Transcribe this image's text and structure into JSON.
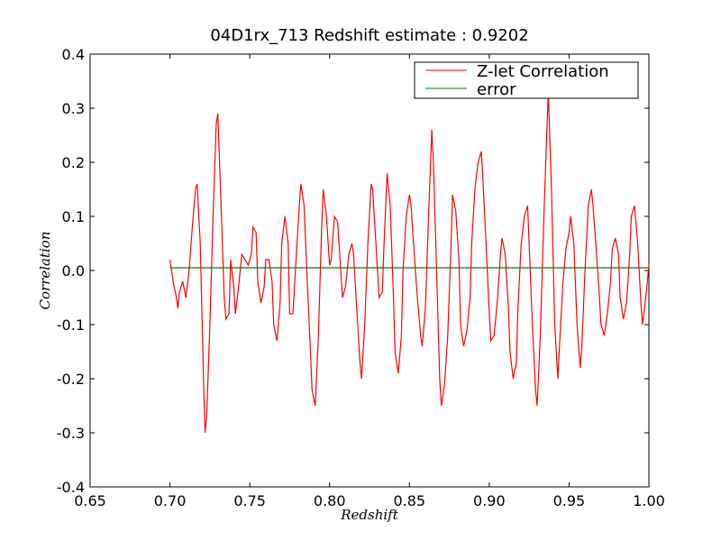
{
  "chart_data": {
    "type": "line",
    "title": "04D1rx_713 Redshift estimate : 0.9202",
    "xlabel": "Redshift",
    "ylabel": "Correlation",
    "xlim": [
      0.65,
      1.0
    ],
    "ylim": [
      -0.4,
      0.4
    ],
    "xticks": [
      "0.65",
      "0.70",
      "0.75",
      "0.80",
      "0.85",
      "0.90",
      "0.95",
      "1.00"
    ],
    "yticks": [
      "-0.4",
      "-0.3",
      "-0.2",
      "-0.1",
      "0.0",
      "0.1",
      "0.2",
      "0.3",
      "0.4"
    ],
    "legend_position": "top-right",
    "series": [
      {
        "name": "Z-let Correlation",
        "color": "#ff0000",
        "points": [
          [
            0.7,
            0.02
          ],
          [
            0.702,
            -0.02
          ],
          [
            0.704,
            -0.05
          ],
          [
            0.705,
            -0.07
          ],
          [
            0.706,
            -0.04
          ],
          [
            0.708,
            -0.02
          ],
          [
            0.71,
            -0.05
          ],
          [
            0.712,
            0.0
          ],
          [
            0.714,
            0.08
          ],
          [
            0.716,
            0.15
          ],
          [
            0.717,
            0.16
          ],
          [
            0.719,
            0.05
          ],
          [
            0.721,
            -0.2
          ],
          [
            0.722,
            -0.3
          ],
          [
            0.723,
            -0.27
          ],
          [
            0.725,
            -0.1
          ],
          [
            0.727,
            0.1
          ],
          [
            0.729,
            0.27
          ],
          [
            0.73,
            0.29
          ],
          [
            0.732,
            0.12
          ],
          [
            0.734,
            -0.05
          ],
          [
            0.735,
            -0.09
          ],
          [
            0.737,
            -0.08
          ],
          [
            0.738,
            0.02
          ],
          [
            0.74,
            -0.03
          ],
          [
            0.741,
            -0.08
          ],
          [
            0.743,
            -0.03
          ],
          [
            0.745,
            0.03
          ],
          [
            0.747,
            0.02
          ],
          [
            0.749,
            0.01
          ],
          [
            0.751,
            0.03
          ],
          [
            0.752,
            0.08
          ],
          [
            0.754,
            0.07
          ],
          [
            0.755,
            -0.02
          ],
          [
            0.757,
            -0.06
          ],
          [
            0.759,
            -0.03
          ],
          [
            0.76,
            0.02
          ],
          [
            0.762,
            0.02
          ],
          [
            0.764,
            -0.02
          ],
          [
            0.765,
            -0.1
          ],
          [
            0.767,
            -0.13
          ],
          [
            0.769,
            -0.06
          ],
          [
            0.77,
            0.05
          ],
          [
            0.772,
            0.1
          ],
          [
            0.774,
            0.05
          ],
          [
            0.775,
            -0.08
          ],
          [
            0.777,
            -0.08
          ],
          [
            0.779,
            0.02
          ],
          [
            0.781,
            0.12
          ],
          [
            0.782,
            0.16
          ],
          [
            0.784,
            0.12
          ],
          [
            0.786,
            -0.02
          ],
          [
            0.788,
            -0.15
          ],
          [
            0.789,
            -0.22
          ],
          [
            0.791,
            -0.25
          ],
          [
            0.793,
            -0.12
          ],
          [
            0.795,
            0.08
          ],
          [
            0.796,
            0.15
          ],
          [
            0.798,
            0.1
          ],
          [
            0.8,
            0.01
          ],
          [
            0.801,
            0.02
          ],
          [
            0.803,
            0.1
          ],
          [
            0.805,
            0.09
          ],
          [
            0.807,
            0.0
          ],
          [
            0.808,
            -0.05
          ],
          [
            0.81,
            -0.03
          ],
          [
            0.812,
            0.03
          ],
          [
            0.814,
            0.05
          ],
          [
            0.815,
            0.03
          ],
          [
            0.817,
            -0.07
          ],
          [
            0.819,
            -0.17
          ],
          [
            0.82,
            -0.2
          ],
          [
            0.822,
            -0.1
          ],
          [
            0.824,
            0.05
          ],
          [
            0.826,
            0.16
          ],
          [
            0.827,
            0.15
          ],
          [
            0.829,
            0.05
          ],
          [
            0.831,
            -0.05
          ],
          [
            0.833,
            -0.04
          ],
          [
            0.834,
            0.04
          ],
          [
            0.836,
            0.18
          ],
          [
            0.838,
            0.12
          ],
          [
            0.84,
            -0.05
          ],
          [
            0.841,
            -0.15
          ],
          [
            0.843,
            -0.19
          ],
          [
            0.845,
            -0.12
          ],
          [
            0.846,
            0.0
          ],
          [
            0.848,
            0.1
          ],
          [
            0.85,
            0.14
          ],
          [
            0.851,
            0.12
          ],
          [
            0.853,
            0.03
          ],
          [
            0.855,
            -0.05
          ],
          [
            0.857,
            -0.12
          ],
          [
            0.858,
            -0.14
          ],
          [
            0.86,
            -0.07
          ],
          [
            0.862,
            0.1
          ],
          [
            0.864,
            0.26
          ],
          [
            0.865,
            0.2
          ],
          [
            0.867,
            0.0
          ],
          [
            0.869,
            -0.2
          ],
          [
            0.87,
            -0.25
          ],
          [
            0.872,
            -0.21
          ],
          [
            0.874,
            -0.12
          ],
          [
            0.876,
            0.04
          ],
          [
            0.877,
            0.14
          ],
          [
            0.879,
            0.11
          ],
          [
            0.881,
            0.02
          ],
          [
            0.882,
            -0.1
          ],
          [
            0.884,
            -0.14
          ],
          [
            0.886,
            -0.11
          ],
          [
            0.888,
            -0.05
          ],
          [
            0.889,
            0.05
          ],
          [
            0.891,
            0.15
          ],
          [
            0.893,
            0.2
          ],
          [
            0.895,
            0.22
          ],
          [
            0.896,
            0.17
          ],
          [
            0.898,
            0.05
          ],
          [
            0.9,
            -0.08
          ],
          [
            0.901,
            -0.13
          ],
          [
            0.903,
            -0.12
          ],
          [
            0.905,
            -0.06
          ],
          [
            0.907,
            0.03
          ],
          [
            0.908,
            0.06
          ],
          [
            0.91,
            0.03
          ],
          [
            0.912,
            -0.07
          ],
          [
            0.913,
            -0.15
          ],
          [
            0.915,
            -0.2
          ],
          [
            0.917,
            -0.17
          ],
          [
            0.918,
            -0.07
          ],
          [
            0.92,
            0.05
          ],
          [
            0.922,
            0.1
          ],
          [
            0.924,
            0.12
          ],
          [
            0.925,
            0.05
          ],
          [
            0.927,
            -0.1
          ],
          [
            0.929,
            -0.22
          ],
          [
            0.93,
            -0.25
          ],
          [
            0.932,
            -0.12
          ],
          [
            0.934,
            0.08
          ],
          [
            0.936,
            0.25
          ],
          [
            0.937,
            0.33
          ],
          [
            0.939,
            0.15
          ],
          [
            0.941,
            -0.1
          ],
          [
            0.943,
            -0.2
          ],
          [
            0.944,
            -0.14
          ],
          [
            0.946,
            -0.03
          ],
          [
            0.948,
            0.04
          ],
          [
            0.95,
            0.07
          ],
          [
            0.951,
            0.1
          ],
          [
            0.953,
            0.05
          ],
          [
            0.955,
            -0.1
          ],
          [
            0.957,
            -0.18
          ],
          [
            0.958,
            -0.14
          ],
          [
            0.96,
            0.0
          ],
          [
            0.962,
            0.12
          ],
          [
            0.964,
            0.15
          ],
          [
            0.965,
            0.12
          ],
          [
            0.967,
            0.04
          ],
          [
            0.969,
            -0.05
          ],
          [
            0.97,
            -0.1
          ],
          [
            0.972,
            -0.12
          ],
          [
            0.974,
            -0.08
          ],
          [
            0.976,
            -0.02
          ],
          [
            0.977,
            0.04
          ],
          [
            0.979,
            0.06
          ],
          [
            0.981,
            0.03
          ],
          [
            0.982,
            -0.05
          ],
          [
            0.984,
            -0.09
          ],
          [
            0.986,
            -0.06
          ],
          [
            0.988,
            0.03
          ],
          [
            0.989,
            0.1
          ],
          [
            0.991,
            0.12
          ],
          [
            0.993,
            0.05
          ],
          [
            0.995,
            -0.06
          ],
          [
            0.996,
            -0.1
          ],
          [
            0.998,
            -0.05
          ],
          [
            1.0,
            0.01
          ]
        ]
      },
      {
        "name": "error",
        "color": "#008000",
        "points": [
          [
            0.7,
            0.005
          ],
          [
            1.0,
            0.005
          ]
        ]
      }
    ],
    "marker": {
      "symbol": "inverted-triangle",
      "x": 0.9202,
      "y": 0.33
    }
  }
}
